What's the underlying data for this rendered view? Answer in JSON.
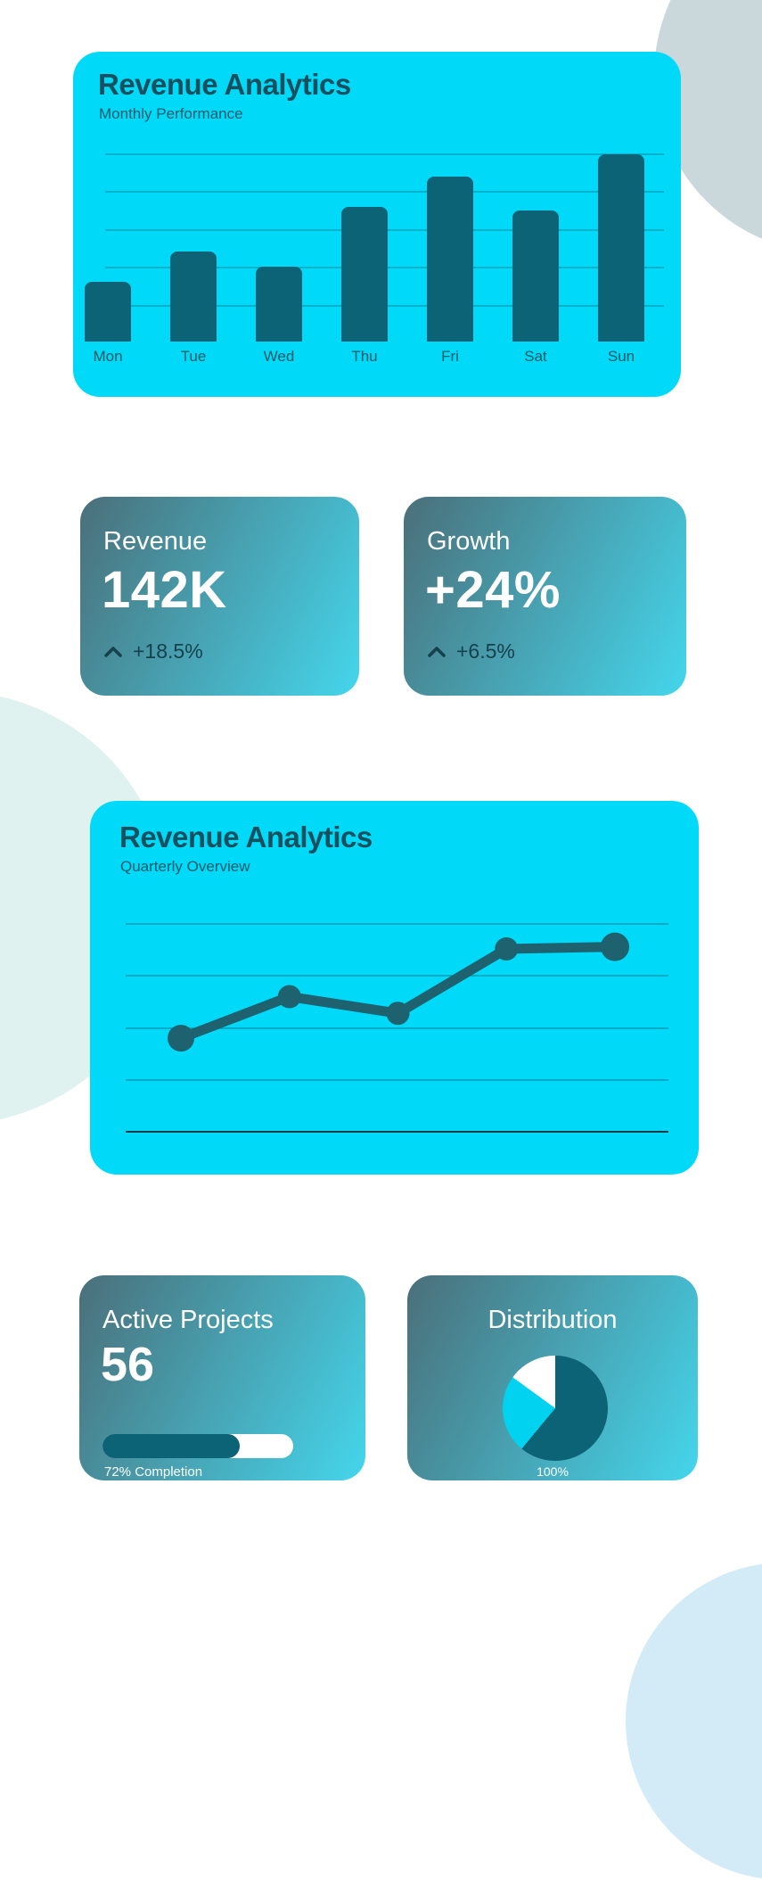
{
  "colors": {
    "card_cyan": "#00DAF8",
    "bar_teal": "#0B6375",
    "line_teal": "#1E616F",
    "title_dark": "#16505F",
    "gradient_start": "#4A6F79",
    "gradient_end": "#45D6EC",
    "pie_cyan": "#00D2F0"
  },
  "bar_card": {
    "title": "Revenue Analytics",
    "subtitle": "Monthly Performance"
  },
  "line_card": {
    "title": "Revenue Analytics",
    "subtitle": "Quarterly Overview"
  },
  "stats": {
    "revenue": {
      "label": "Revenue",
      "value": "142K",
      "delta": "+18.5%",
      "trend_icon": "chevron-up"
    },
    "growth": {
      "label": "Growth",
      "value": "+24%",
      "delta": "+6.5%",
      "trend_icon": "chevron-up"
    }
  },
  "projects": {
    "label": "Active Projects",
    "value": "56",
    "completion_pct": 72,
    "completion_text": "72% Completion"
  },
  "distribution": {
    "label": "Distribution",
    "total_label": "100%"
  },
  "chart_data": [
    {
      "type": "bar",
      "title": "Revenue Analytics",
      "subtitle": "Monthly Performance",
      "categories": [
        "Mon",
        "Tue",
        "Wed",
        "Thu",
        "Fri",
        "Sat",
        "Sun"
      ],
      "values": [
        32,
        48,
        40,
        72,
        88,
        70,
        100
      ],
      "ylim": [
        0,
        100
      ],
      "grid": true,
      "bar_color": "#0B6375"
    },
    {
      "type": "line",
      "title": "Revenue Analytics",
      "subtitle": "Quarterly Overview",
      "x": [
        1,
        2,
        3,
        4,
        5
      ],
      "values": [
        45,
        65,
        57,
        88,
        89
      ],
      "ylim": [
        0,
        100
      ],
      "grid": true,
      "line_color": "#1E616F"
    },
    {
      "type": "progress",
      "label": "Active Projects",
      "value": 56,
      "completion_pct": 72
    },
    {
      "type": "pie",
      "label": "Distribution",
      "slices": [
        {
          "name": "segment-dark-teal",
          "pct": 61,
          "color": "#0B6375"
        },
        {
          "name": "segment-cyan",
          "pct": 24,
          "color": "#00D2F0"
        },
        {
          "name": "segment-white",
          "pct": 15,
          "color": "#ffffff"
        }
      ],
      "center_label": "100%"
    }
  ]
}
